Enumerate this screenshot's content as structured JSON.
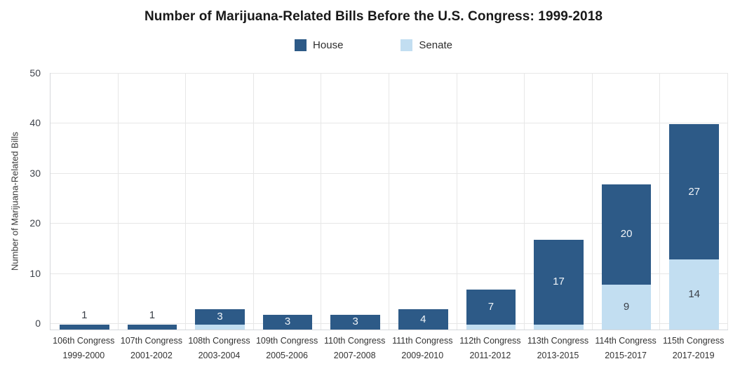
{
  "chart": {
    "title": "Number of Marijuana-Related Bills Before the U.S. Congress: 1999-2018"
  },
  "colors": {
    "house": "#2d5a87",
    "senate": "#c2def1",
    "grid": "#e7e7e7",
    "axis": "#d5d8dc",
    "title_text": "#191919",
    "value_label_light": "#f0f4f8",
    "value_label_dark": "#3b4048"
  },
  "chart_data": {
    "type": "bar",
    "stacked": true,
    "title": "Number of Marijuana-Related Bills Before the U.S. Congress: 1999-2018",
    "xlabel": "",
    "ylabel": "Number of Marijuana-Related Bills",
    "ylim": [
      0,
      50
    ],
    "yticks": [
      0,
      10,
      20,
      30,
      40,
      50
    ],
    "grid": true,
    "legend_position": "top-center",
    "categories": [
      {
        "congress": "106th Congress",
        "years": "1999-2000"
      },
      {
        "congress": "107th Congress",
        "years": "2001-2002"
      },
      {
        "congress": "108th Congress",
        "years": "2003-2004"
      },
      {
        "congress": "109th Congress",
        "years": "2005-2006"
      },
      {
        "congress": "110th Congress",
        "years": "2007-2008"
      },
      {
        "congress": "111th Congress",
        "years": "2009-2010"
      },
      {
        "congress": "112th Congress",
        "years": "2011-2012"
      },
      {
        "congress": "113th Congress",
        "years": "2013-2015"
      },
      {
        "congress": "114th Congress",
        "years": "2015-2017"
      },
      {
        "congress": "115th Congress",
        "years": "2017-2019"
      }
    ],
    "series": [
      {
        "name": "House",
        "color": "#2d5a87",
        "values": [
          1,
          1,
          3,
          3,
          3,
          4,
          7,
          17,
          20,
          27
        ],
        "labels": [
          "1",
          "1",
          "3",
          "3",
          "3",
          "4",
          "7",
          "17",
          "20",
          "27"
        ]
      },
      {
        "name": "Senate",
        "color": "#c2def1",
        "values": [
          0,
          0,
          1,
          0,
          0,
          0,
          1,
          1,
          9,
          14
        ],
        "labels": [
          null,
          null,
          null,
          null,
          null,
          null,
          null,
          null,
          "9",
          "14"
        ]
      }
    ],
    "totals": [
      1,
      1,
      4,
      3,
      3,
      4,
      8,
      18,
      29,
      41
    ]
  }
}
